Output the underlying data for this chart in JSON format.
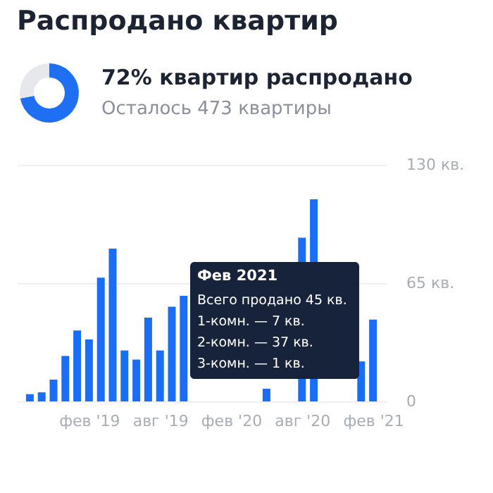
{
  "chart_data": [
    {
      "type": "donut",
      "title": "Распродано квартир",
      "annotations": [
        "72% квартир распродано",
        "Осталось 473 квартиры"
      ],
      "categories": [
        null,
        null
      ],
      "values": [
        72,
        28
      ],
      "colors": [
        "#1f6ff2",
        "#e6e8ec"
      ]
    },
    {
      "type": "bar",
      "categories": [
        null,
        null,
        null,
        null,
        null,
        "фев '19",
        null,
        null,
        null,
        null,
        null,
        "авг '19",
        null,
        null,
        null,
        null,
        null,
        "фев '20",
        null,
        null,
        null,
        null,
        null,
        "авг '20",
        null,
        null,
        null,
        null,
        null,
        "фев '21"
      ],
      "values": [
        4,
        5,
        12,
        25,
        39,
        34,
        68,
        84,
        28,
        23,
        46,
        28,
        52,
        58,
        null,
        null,
        null,
        null,
        null,
        null,
        7,
        null,
        null,
        90,
        111,
        null,
        null,
        null,
        22,
        45
      ],
      "color": "#1a6ef5",
      "ylim": [
        0,
        130
      ],
      "yticks": [
        0,
        {
          "value": 65,
          "label": "65 кв."
        },
        {
          "value": 130,
          "label": "130 кв."
        }
      ],
      "grid": "y",
      "annotations": [
        "Фев 2021",
        "Всего продано 45 кв.",
        "1-комн. — 7 кв.",
        "2-комн. — 37 кв.",
        "3-комн. — 1 кв."
      ]
    }
  ]
}
